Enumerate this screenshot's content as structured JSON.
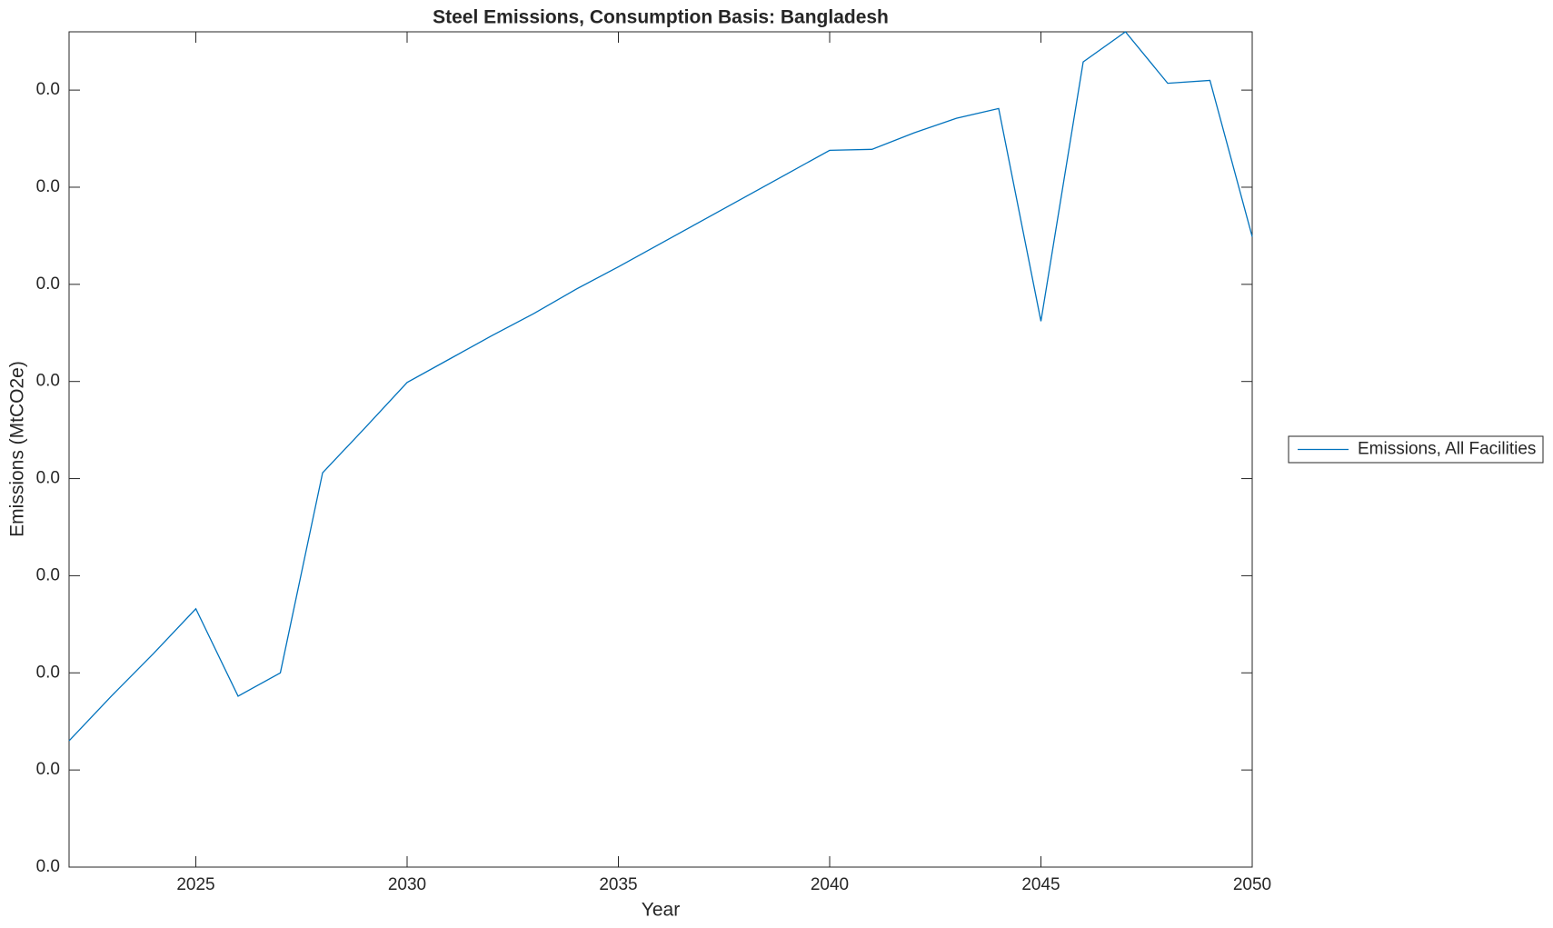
{
  "chart_data": {
    "type": "line",
    "title": "Steel Emissions, Consumption Basis: Bangladesh",
    "xlabel": "Year",
    "ylabel": "Emissions (MtCO2e)",
    "x": [
      2022,
      2023,
      2024,
      2025,
      2026,
      2027,
      2028,
      2029,
      2030,
      2031,
      2032,
      2033,
      2034,
      2035,
      2036,
      2037,
      2038,
      2039,
      2040,
      2041,
      2042,
      2043,
      2044,
      2045,
      2046,
      2047,
      2048,
      2049,
      2050
    ],
    "series": [
      {
        "name": "Emissions, All Facilities",
        "color": "#0072bd",
        "values": [
          0.0013,
          0.00176,
          0.0022,
          0.00266,
          0.00176,
          0.002,
          0.00406,
          0.00452,
          0.00499,
          0.00523,
          0.00547,
          0.0057,
          0.00595,
          0.00618,
          0.00642,
          0.00666,
          0.0069,
          0.00714,
          0.00738,
          0.00739,
          0.00756,
          0.00771,
          0.00781,
          0.00562,
          0.00829,
          0.0086,
          0.00807,
          0.0081,
          0.00649
        ]
      }
    ],
    "xlim": [
      2022,
      2050
    ],
    "xticks": [
      2025,
      2030,
      2035,
      2040,
      2045,
      2050
    ],
    "ylim": [
      0,
      0.0086
    ],
    "yticks": [
      {
        "value": 0,
        "label": "0.0"
      },
      {
        "value": 0.001,
        "label": "0.0"
      },
      {
        "value": 0.002,
        "label": "0.0"
      },
      {
        "value": 0.003,
        "label": "0.0"
      },
      {
        "value": 0.004,
        "label": "0.0"
      },
      {
        "value": 0.005,
        "label": "0.0"
      },
      {
        "value": 0.006,
        "label": "0.0"
      },
      {
        "value": 0.007,
        "label": "0.0"
      },
      {
        "value": 0.008,
        "label": "0.0"
      }
    ],
    "legend": "right"
  }
}
